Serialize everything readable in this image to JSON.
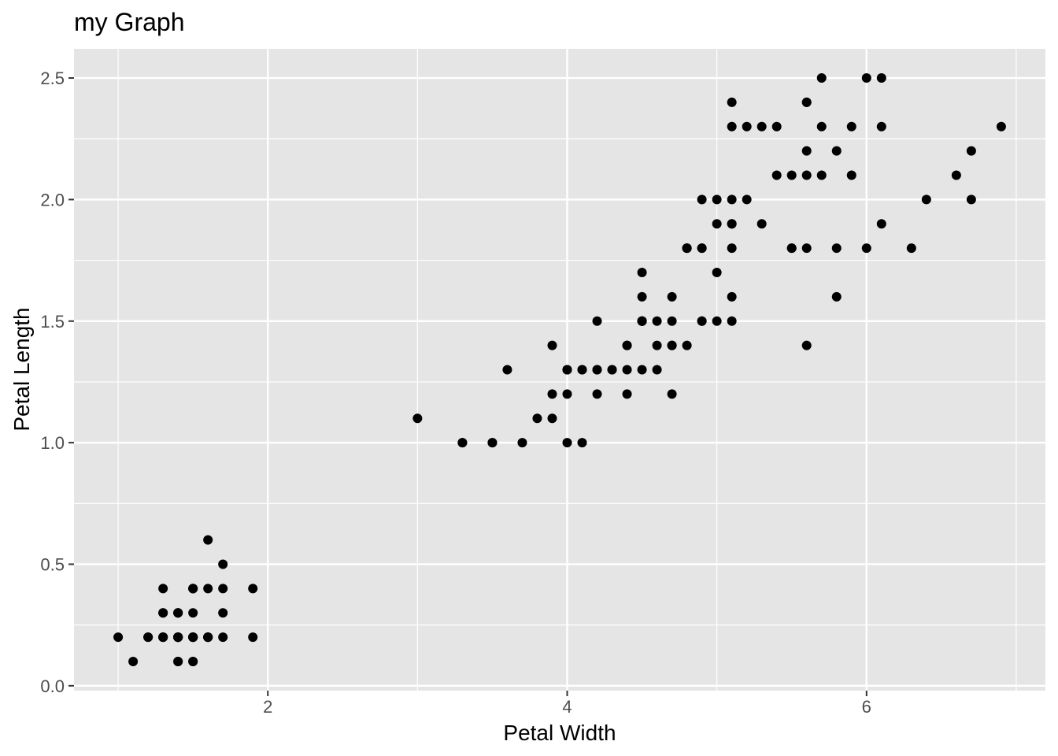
{
  "chart_data": {
    "type": "scatter",
    "title": "my Graph",
    "xlabel": "Petal Width",
    "ylabel": "Petal Length",
    "xlim": [
      0.705,
      7.195
    ],
    "ylim": [
      -0.02,
      2.62
    ],
    "x_ticks": [
      2,
      4,
      6
    ],
    "x_tick_labels": [
      "2",
      "4",
      "6"
    ],
    "y_ticks": [
      0,
      0.5,
      1,
      1.5,
      2,
      2.5
    ],
    "y_tick_labels": [
      "0.0",
      "0.5",
      "1.0",
      "1.5",
      "2.0",
      "2.5"
    ],
    "grid": true,
    "panel_background": "#e5e5e5",
    "grid_color": "#ffffff",
    "point_color": "#000000",
    "points": [
      [
        1.4,
        0.2
      ],
      [
        1.4,
        0.2
      ],
      [
        1.3,
        0.2
      ],
      [
        1.5,
        0.2
      ],
      [
        1.4,
        0.2
      ],
      [
        1.7,
        0.4
      ],
      [
        1.4,
        0.3
      ],
      [
        1.5,
        0.2
      ],
      [
        1.4,
        0.2
      ],
      [
        1.5,
        0.1
      ],
      [
        1.5,
        0.2
      ],
      [
        1.6,
        0.2
      ],
      [
        1.4,
        0.1
      ],
      [
        1.1,
        0.1
      ],
      [
        1.2,
        0.2
      ],
      [
        1.5,
        0.4
      ],
      [
        1.3,
        0.4
      ],
      [
        1.4,
        0.3
      ],
      [
        1.7,
        0.3
      ],
      [
        1.5,
        0.3
      ],
      [
        1.7,
        0.2
      ],
      [
        1.5,
        0.4
      ],
      [
        1.0,
        0.2
      ],
      [
        1.7,
        0.5
      ],
      [
        1.9,
        0.2
      ],
      [
        1.6,
        0.2
      ],
      [
        1.6,
        0.4
      ],
      [
        1.5,
        0.2
      ],
      [
        1.4,
        0.2
      ],
      [
        1.6,
        0.2
      ],
      [
        1.6,
        0.2
      ],
      [
        1.5,
        0.4
      ],
      [
        1.5,
        0.1
      ],
      [
        1.4,
        0.2
      ],
      [
        1.5,
        0.2
      ],
      [
        1.2,
        0.2
      ],
      [
        1.3,
        0.2
      ],
      [
        1.4,
        0.1
      ],
      [
        1.3,
        0.2
      ],
      [
        1.5,
        0.2
      ],
      [
        1.3,
        0.3
      ],
      [
        1.3,
        0.3
      ],
      [
        1.3,
        0.2
      ],
      [
        1.6,
        0.6
      ],
      [
        1.9,
        0.4
      ],
      [
        1.4,
        0.3
      ],
      [
        1.6,
        0.2
      ],
      [
        1.4,
        0.2
      ],
      [
        1.5,
        0.2
      ],
      [
        1.4,
        0.2
      ],
      [
        4.7,
        1.4
      ],
      [
        4.5,
        1.5
      ],
      [
        4.9,
        1.5
      ],
      [
        4.0,
        1.3
      ],
      [
        4.6,
        1.5
      ],
      [
        4.5,
        1.3
      ],
      [
        4.7,
        1.6
      ],
      [
        3.3,
        1.0
      ],
      [
        4.6,
        1.3
      ],
      [
        3.9,
        1.4
      ],
      [
        3.5,
        1.0
      ],
      [
        4.2,
        1.5
      ],
      [
        4.0,
        1.0
      ],
      [
        4.7,
        1.4
      ],
      [
        3.6,
        1.3
      ],
      [
        4.4,
        1.4
      ],
      [
        4.5,
        1.5
      ],
      [
        4.1,
        1.0
      ],
      [
        4.5,
        1.5
      ],
      [
        3.9,
        1.1
      ],
      [
        4.8,
        1.8
      ],
      [
        4.0,
        1.3
      ],
      [
        4.9,
        1.5
      ],
      [
        4.7,
        1.2
      ],
      [
        4.3,
        1.3
      ],
      [
        4.4,
        1.4
      ],
      [
        4.8,
        1.4
      ],
      [
        5.0,
        1.7
      ],
      [
        4.5,
        1.5
      ],
      [
        3.5,
        1.0
      ],
      [
        3.8,
        1.1
      ],
      [
        3.7,
        1.0
      ],
      [
        3.9,
        1.2
      ],
      [
        5.1,
        1.6
      ],
      [
        4.5,
        1.5
      ],
      [
        4.5,
        1.6
      ],
      [
        4.7,
        1.5
      ],
      [
        4.4,
        1.3
      ],
      [
        4.1,
        1.3
      ],
      [
        4.0,
        1.3
      ],
      [
        4.4,
        1.2
      ],
      [
        4.6,
        1.4
      ],
      [
        4.0,
        1.2
      ],
      [
        3.3,
        1.0
      ],
      [
        4.2,
        1.3
      ],
      [
        4.2,
        1.2
      ],
      [
        4.2,
        1.3
      ],
      [
        4.3,
        1.3
      ],
      [
        3.0,
        1.1
      ],
      [
        4.1,
        1.3
      ],
      [
        6.0,
        2.5
      ],
      [
        5.1,
        1.9
      ],
      [
        5.9,
        2.1
      ],
      [
        5.6,
        1.8
      ],
      [
        5.8,
        2.2
      ],
      [
        6.6,
        2.1
      ],
      [
        4.5,
        1.7
      ],
      [
        6.3,
        1.8
      ],
      [
        5.8,
        1.8
      ],
      [
        6.1,
        2.5
      ],
      [
        5.1,
        2.0
      ],
      [
        5.3,
        1.9
      ],
      [
        5.5,
        2.1
      ],
      [
        5.0,
        2.0
      ],
      [
        5.1,
        2.4
      ],
      [
        5.3,
        2.3
      ],
      [
        5.5,
        1.8
      ],
      [
        6.7,
        2.2
      ],
      [
        6.9,
        2.3
      ],
      [
        5.0,
        1.5
      ],
      [
        5.7,
        2.3
      ],
      [
        4.9,
        2.0
      ],
      [
        6.7,
        2.0
      ],
      [
        4.9,
        1.8
      ],
      [
        5.7,
        2.1
      ],
      [
        6.0,
        1.8
      ],
      [
        4.8,
        1.8
      ],
      [
        4.9,
        1.8
      ],
      [
        5.6,
        2.1
      ],
      [
        5.8,
        1.6
      ],
      [
        6.1,
        1.9
      ],
      [
        6.4,
        2.0
      ],
      [
        5.6,
        2.2
      ],
      [
        5.1,
        1.5
      ],
      [
        5.6,
        1.4
      ],
      [
        6.1,
        2.3
      ],
      [
        5.6,
        2.4
      ],
      [
        5.5,
        1.8
      ],
      [
        4.8,
        1.8
      ],
      [
        5.4,
        2.1
      ],
      [
        5.6,
        2.4
      ],
      [
        5.1,
        2.3
      ],
      [
        5.1,
        1.9
      ],
      [
        5.9,
        2.3
      ],
      [
        5.7,
        2.5
      ],
      [
        5.2,
        2.3
      ],
      [
        5.0,
        1.9
      ],
      [
        5.2,
        2.0
      ],
      [
        5.4,
        2.3
      ],
      [
        5.1,
        1.8
      ]
    ]
  }
}
